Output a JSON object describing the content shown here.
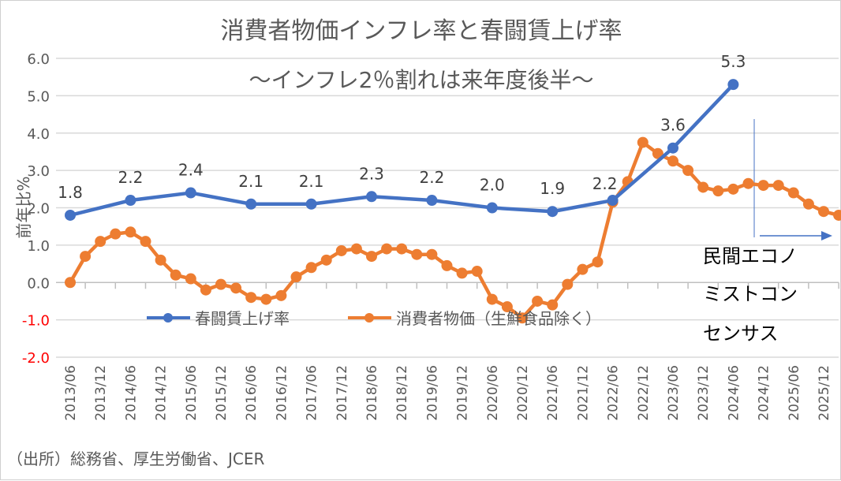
{
  "chart_data": {
    "type": "line",
    "title": "消費者物価インフレ率と春闘賃上げ率",
    "subtitle": "〜インフレ2％割れは来年度後半〜",
    "ylabel": "前年比%",
    "xlabel": "",
    "ylim": [
      -2.0,
      6.0
    ],
    "yticks": [
      "6.0",
      "5.0",
      "4.0",
      "3.0",
      "2.0",
      "1.0",
      "0.0",
      "-1.0",
      "-2.0"
    ],
    "negative_tick_color": "#ff0000",
    "grid": true,
    "x_tick_labels": [
      "2013/06",
      "2013/12",
      "2014/06",
      "2014/12",
      "2015/06",
      "2015/12",
      "2016/06",
      "2016/12",
      "2017/06",
      "2017/12",
      "2018/06",
      "2018/12",
      "2019/06",
      "2019/12",
      "2020/06",
      "2020/12",
      "2021/06",
      "2021/12",
      "2022/06",
      "2022/12",
      "2023/06",
      "2023/12",
      "2024/06",
      "2024/12",
      "2025/06",
      "2025/12"
    ],
    "legend_position": "bottom-inside",
    "series": [
      {
        "name": "春闘賃上げ率",
        "color": "#4472c4",
        "x": [
          "2013/06",
          "2014/06",
          "2015/06",
          "2016/06",
          "2017/06",
          "2018/06",
          "2019/06",
          "2020/06",
          "2021/06",
          "2022/06",
          "2023/06",
          "2024/06"
        ],
        "values": [
          1.8,
          2.2,
          2.4,
          2.1,
          2.1,
          2.3,
          2.2,
          2.0,
          1.9,
          2.2,
          3.6,
          5.3
        ],
        "data_labels": [
          "1.8",
          "2.2",
          "2.4",
          "2.1",
          "2.1",
          "2.3",
          "2.2",
          "2.0",
          "1.9",
          "2.2",
          "3.6",
          "5.3"
        ]
      },
      {
        "name": "消費者物価（生鮮食品除く）",
        "color": "#ed7d31",
        "frequency": "quarterly",
        "start": "2013/06",
        "end": "2026/03",
        "values": [
          0.0,
          0.7,
          1.1,
          1.3,
          1.35,
          1.1,
          0.6,
          0.2,
          0.1,
          -0.2,
          -0.05,
          -0.15,
          -0.4,
          -0.45,
          -0.35,
          0.15,
          0.4,
          0.6,
          0.85,
          0.9,
          0.7,
          0.9,
          0.9,
          0.75,
          0.75,
          0.45,
          0.25,
          0.3,
          -0.45,
          -0.65,
          -0.95,
          -0.5,
          -0.6,
          -0.05,
          0.35,
          0.55,
          2.15,
          2.7,
          3.75,
          3.45,
          3.25,
          3.0,
          2.55,
          2.45,
          2.5,
          2.65,
          2.6,
          2.6,
          2.4,
          2.1,
          1.9,
          1.8
        ]
      }
    ],
    "annotation": [
      "民間エコノ",
      "ミストコン",
      "センサス"
    ],
    "source": "（出所）総務省、厚生労働省、JCER"
  }
}
